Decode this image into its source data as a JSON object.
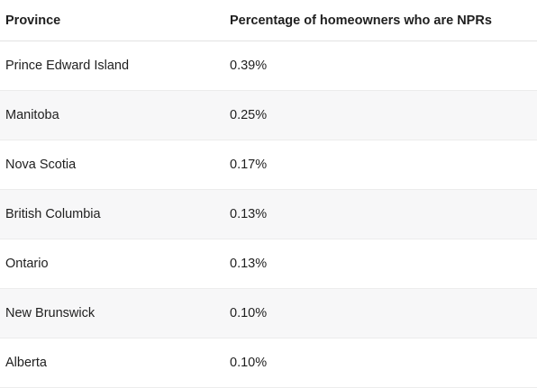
{
  "table": {
    "headers": [
      "Province",
      "Percentage of homeowners who are NPRs"
    ],
    "rows": [
      [
        "Prince Edward Island",
        "0.39%"
      ],
      [
        "Manitoba",
        "0.25%"
      ],
      [
        "Nova Scotia",
        "0.17%"
      ],
      [
        "British Columbia",
        "0.13%"
      ],
      [
        "Ontario",
        "0.13%"
      ],
      [
        "New Brunswick",
        "0.10%"
      ],
      [
        "Alberta",
        "0.10%"
      ]
    ]
  }
}
